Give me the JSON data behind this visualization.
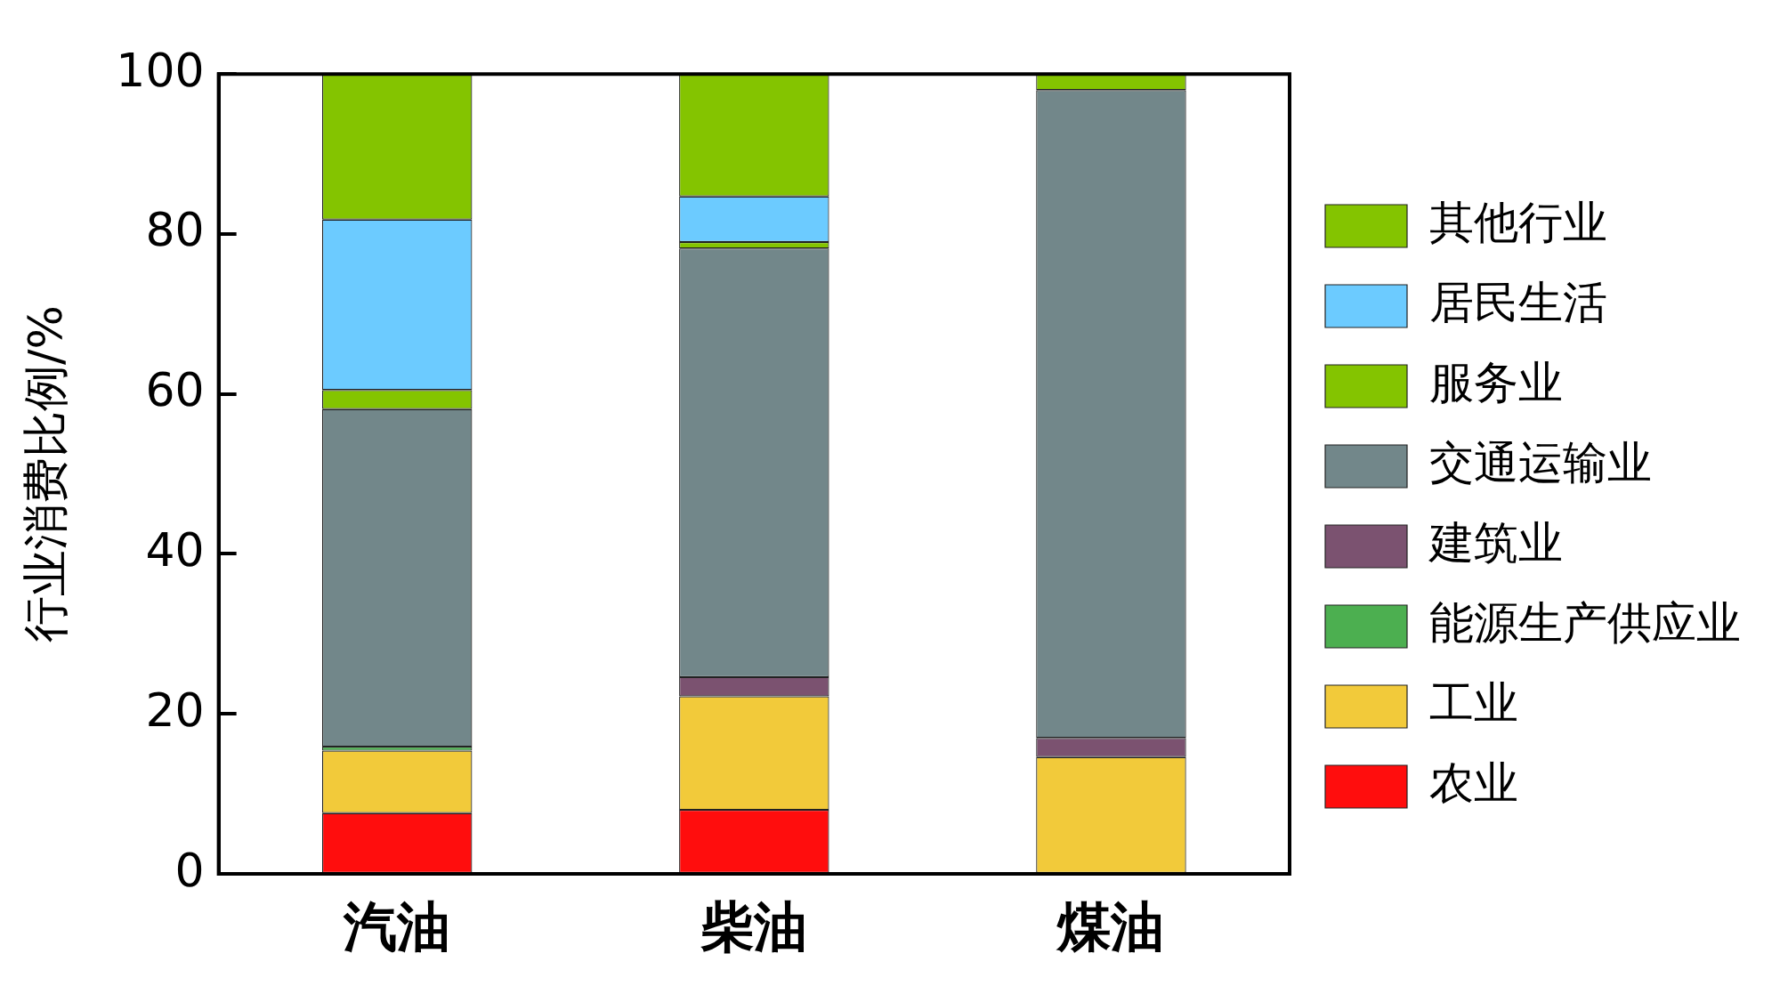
{
  "chart_data": {
    "type": "bar",
    "stacked": true,
    "ylabel": "行业消费比例/%",
    "categories": [
      "汽油",
      "柴油",
      "煤油"
    ],
    "series": [
      {
        "name": "农业",
        "color": "#ff0d0d",
        "values": [
          7.6,
          8.0,
          null
        ]
      },
      {
        "name": "工业",
        "color": "#f2ca3a",
        "values": [
          7.8,
          14.2,
          14.6
        ]
      },
      {
        "name": "能源生产供应业",
        "color": "#4caf50",
        "values": [
          0.5,
          null,
          null
        ]
      },
      {
        "name": "建筑业",
        "color": "#7b5270",
        "values": [
          null,
          2.4,
          2.4
        ]
      },
      {
        "name": "交通运输业",
        "color": "#72878a",
        "values": [
          42.2,
          53.6,
          81.0
        ]
      },
      {
        "name": "服务业",
        "color": "#84c400",
        "values": [
          2.4,
          0.8,
          null
        ]
      },
      {
        "name": "居民生活",
        "color": "#6ccbff",
        "values": [
          21.3,
          5.7,
          null
        ]
      },
      {
        "name": "其他行业",
        "color": "#84c400",
        "values": [
          18.2,
          15.3,
          2.0
        ]
      }
    ],
    "ylim": [
      0,
      100
    ],
    "yticks": [
      0,
      20,
      40,
      60,
      80,
      100
    ],
    "legend": "right",
    "grid": false
  }
}
